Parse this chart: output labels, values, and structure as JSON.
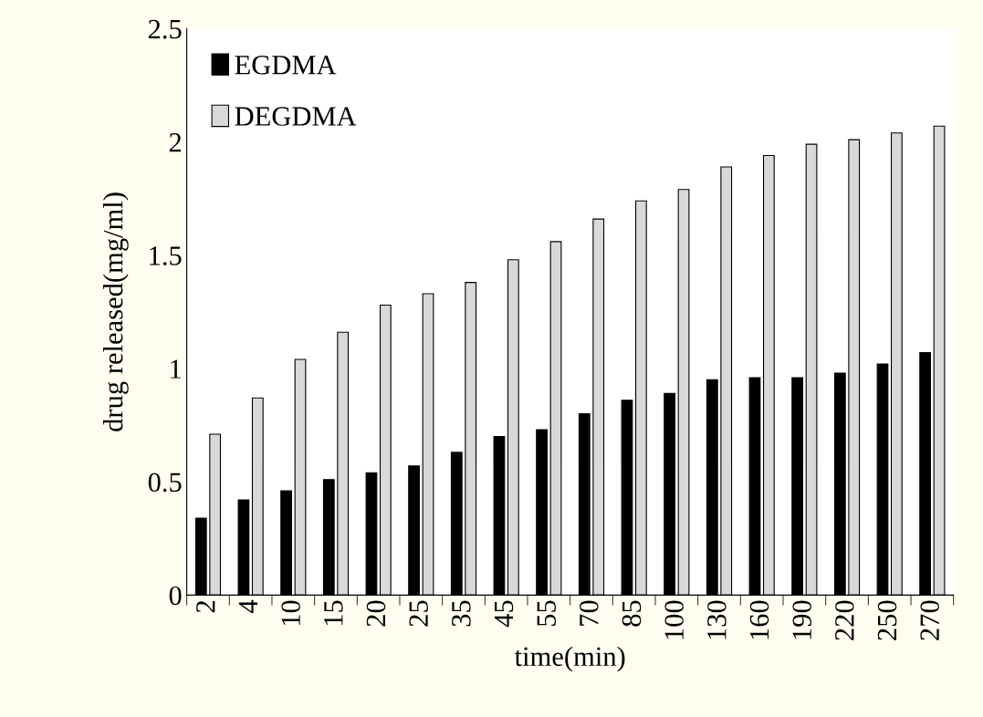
{
  "chart_data": {
    "type": "bar",
    "xlabel": "time(min)",
    "ylabel": "drug released(mg/ml)",
    "categories": [
      "2",
      "4",
      "10",
      "15",
      "20",
      "25",
      "35",
      "45",
      "55",
      "70",
      "85",
      "100",
      "130",
      "160",
      "190",
      "220",
      "250",
      "270"
    ],
    "series": [
      {
        "name": "EGDMA",
        "color": "#000000",
        "values": [
          0.34,
          0.42,
          0.46,
          0.51,
          0.54,
          0.57,
          0.63,
          0.7,
          0.73,
          0.8,
          0.86,
          0.89,
          0.95,
          0.96,
          0.96,
          0.98,
          1.02,
          1.07
        ]
      },
      {
        "name": "DEGDMA",
        "color": "#d9d9d9",
        "values": [
          0.71,
          0.87,
          1.04,
          1.16,
          1.28,
          1.33,
          1.38,
          1.48,
          1.56,
          1.66,
          1.74,
          1.79,
          1.89,
          1.94,
          1.99,
          2.01,
          2.04,
          2.07
        ]
      }
    ],
    "ylim": [
      0,
      2.5
    ],
    "yticks": [
      0,
      0.5,
      1,
      1.5,
      2,
      2.5
    ],
    "grid": false,
    "legend": "top left"
  }
}
